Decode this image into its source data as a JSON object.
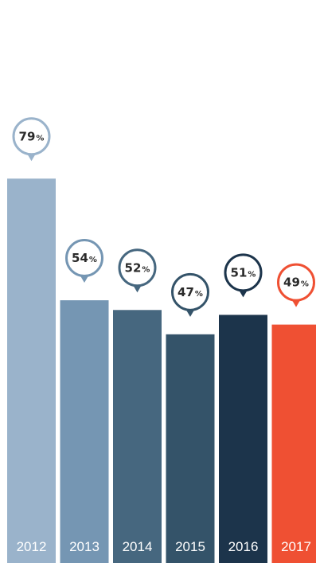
{
  "chart_data": {
    "type": "bar",
    "categories": [
      "2012",
      "2013",
      "2014",
      "2015",
      "2016",
      "2017"
    ],
    "values": [
      79,
      54,
      52,
      47,
      51,
      49
    ],
    "value_suffix": "%",
    "colors": [
      "#9ab3cb",
      "#7596b3",
      "#46677f",
      "#345369",
      "#1c344b",
      "#ef5033"
    ],
    "ylim": [
      0,
      100
    ],
    "grid": false,
    "title": "",
    "xlabel": "",
    "ylabel": ""
  }
}
